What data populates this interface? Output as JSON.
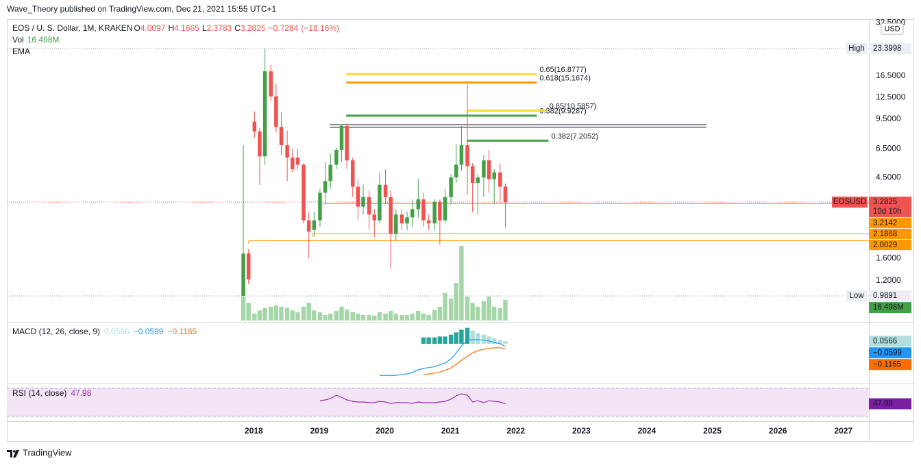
{
  "header": {
    "publisher": "Wave_Theory published on TradingView.com, Dec 21, 2021 15:55 UTC+1"
  },
  "footer": {
    "brand": "TradingView"
  },
  "chart_data": {
    "type": "candlestick",
    "title": "EOS / U. S. Dollar, 1M, KRAKEN",
    "currency": "USD",
    "ohlc_keys": [
      "O",
      "H",
      "L",
      "C"
    ],
    "last": {
      "open": 4.0097,
      "high": 4.1665,
      "low": 2.3783,
      "close": 3.2825,
      "change": {
        "value": -0.7284,
        "label": "−0.7284"
      },
      "change_pct": {
        "value": -18.16,
        "label": "(−18.16%)"
      }
    },
    "log_scale": true,
    "up_color": "#43a047",
    "down_color": "#ef5350",
    "x": [
      2017.84,
      2017.92,
      2018.01,
      2018.09,
      2018.17,
      2018.26,
      2018.34,
      2018.42,
      2018.51,
      2018.59,
      2018.67,
      2018.76,
      2018.84,
      2018.92,
      2019.01,
      2019.09,
      2019.17,
      2019.26,
      2019.34,
      2019.42,
      2019.51,
      2019.59,
      2019.67,
      2019.76,
      2019.84,
      2019.92,
      2020.01,
      2020.09,
      2020.17,
      2020.26,
      2020.34,
      2020.42,
      2020.51,
      2020.59,
      2020.67,
      2020.76,
      2020.84,
      2020.92,
      2021.01,
      2021.09,
      2021.17,
      2021.26,
      2021.34,
      2021.42,
      2021.51,
      2021.59,
      2021.67,
      2021.76,
      2021.84
    ],
    "open": [
      0.99,
      1.7,
      9.2,
      8.1,
      5.9,
      17.5,
      12.7,
      8.6,
      6.8,
      5.8,
      5.8,
      5.3,
      2.6,
      2.3,
      2.6,
      3.7,
      4.3,
      5.3,
      6.4,
      8.7,
      5.6,
      4.0,
      3.1,
      3.5,
      2.8,
      2.6,
      4.1,
      3.5,
      2.2,
      2.8,
      2.5,
      2.7,
      3.0,
      3.4,
      2.6,
      2.5,
      3.3,
      2.6,
      3.5,
      4.5,
      5.3,
      6.8,
      5.2,
      4.2,
      4.5,
      5.6,
      4.4,
      4.8,
      4.0097
    ],
    "high": [
      6.8,
      1.8,
      10.5,
      8.5,
      23.3998,
      19,
      15,
      10.4,
      8.2,
      6.5,
      6.5,
      5.4,
      2.9,
      2.9,
      3.9,
      5.5,
      6.1,
      6.6,
      8.9,
      9.0,
      5.8,
      4.4,
      4.1,
      3.8,
      3.0,
      4.8,
      5.0,
      3.8,
      3.0,
      3.0,
      2.9,
      3.4,
      4.4,
      3.7,
      2.8,
      3.4,
      3.4,
      3.9,
      4.7,
      6.9,
      8.7,
      14.8,
      5.4,
      4.7,
      6.0,
      6.4,
      5.0,
      5.4,
      4.1665
    ],
    "low": [
      0.9891,
      1.15,
      7.5,
      4.1,
      5.3,
      12,
      8.0,
      6.0,
      4.3,
      4.8,
      5.0,
      2.5,
      1.6,
      2.1,
      2.4,
      3.2,
      3.9,
      5.0,
      5.5,
      5.0,
      3.5,
      2.6,
      2.8,
      2.3,
      2.1,
      2.5,
      3.2,
      1.4,
      2.0,
      2.3,
      2.3,
      2.4,
      2.7,
      2.4,
      2.3,
      2.3,
      1.9,
      2.5,
      3.2,
      4.2,
      4.9,
      3.6,
      2.9,
      2.8,
      3.5,
      3.7,
      3.2,
      3.3,
      2.3783
    ],
    "close": [
      1.7,
      1.22,
      8.1,
      5.9,
      17.5,
      12.7,
      8.6,
      6.8,
      5.8,
      5.0,
      5.3,
      2.6,
      2.25,
      2.6,
      3.7,
      4.3,
      5.3,
      6.4,
      8.7,
      5.6,
      4.0,
      3.1,
      3.5,
      2.8,
      2.6,
      4.1,
      3.5,
      2.2,
      2.8,
      2.5,
      2.7,
      3.0,
      3.4,
      2.6,
      2.5,
      3.3,
      2.6,
      3.5,
      4.5,
      5.3,
      6.8,
      5.2,
      4.2,
      4.5,
      5.6,
      4.4,
      4.8,
      4.0,
      3.2825
    ],
    "xlim": [
      2014.23,
      2027.39
    ],
    "xticks": [
      2018,
      2019,
      2020,
      2021,
      2022,
      2023,
      2024,
      2025,
      2026,
      2027
    ],
    "ylim": [
      0.722,
      34.1
    ],
    "yticks": [
      {
        "value": 32.5,
        "label": "32.5000"
      },
      {
        "value": 16.5,
        "label": "16.5000"
      },
      {
        "value": 12.5,
        "label": "12.5000"
      },
      {
        "value": 9.5,
        "label": "9.5000"
      },
      {
        "value": 6.5,
        "label": "6.5000"
      },
      {
        "value": 4.5,
        "label": "4.5000"
      },
      {
        "value": 1.6,
        "label": "1.6000"
      },
      {
        "value": 1.2,
        "label": "1.2000"
      }
    ],
    "high_marker": {
      "label": "High",
      "value": 23.3998
    },
    "low_marker": {
      "label": "Low",
      "value": 0.9891
    },
    "price_tag": {
      "symbol": "EOSUSD",
      "value": 3.2825,
      "countdown": "10d 10h"
    },
    "level_color": "#ff9800",
    "levels": [
      {
        "value": 3.2142,
        "x_start": 2019.06
      },
      {
        "value": 2.1868,
        "x_start": 2018.89
      },
      {
        "value": 2.0029,
        "x_start": 2017.92
      }
    ],
    "trend_lines": [
      {
        "value": 8.85,
        "x_range": [
          2019.16,
          2024.91
        ]
      },
      {
        "value": 8.55,
        "x_range": [
          2019.16,
          2024.91
        ]
      }
    ],
    "fib_levels": [
      {
        "label": "0.65(16.8777)",
        "value": 16.8777,
        "color": "#fdd835",
        "x_range": [
          2019.41,
          2022.32
        ]
      },
      {
        "label": "0.618(15.1674)",
        "value": 15.1674,
        "color": "#ff9800",
        "x_range": [
          2019.41,
          2022.32
        ]
      },
      {
        "label": "0.382(9.9287)",
        "value": 9.9287,
        "color": "#43a047",
        "x_range": [
          2019.41,
          2022.32
        ]
      },
      {
        "label": "0.65(10.5857)",
        "value": 10.5857,
        "color": "#fdd835",
        "x_range": [
          2021.25,
          2022.47
        ]
      },
      {
        "label": "0.382(7.2052)",
        "value": 7.2052,
        "color": "#43a047",
        "x_range": [
          2021.25,
          2022.5
        ]
      }
    ],
    "ema_label": "EMA",
    "volume": {
      "name": "Vol",
      "color": "#a5d6a7",
      "ylim": [
        0,
        60
      ],
      "value_label": "16.498M",
      "values": [
        19,
        14,
        5.5,
        8,
        10,
        11,
        12,
        11,
        10,
        8,
        6.6,
        11,
        14,
        8,
        6.6,
        4.4,
        5.5,
        7.7,
        11,
        8.8,
        6.6,
        5.5,
        4.4,
        4.4,
        3.9,
        6.6,
        5.5,
        7.7,
        5.5,
        4.4,
        4.4,
        5.5,
        7.7,
        5.5,
        4.4,
        8.3,
        11,
        22,
        17.6,
        30,
        59.4,
        19,
        14,
        11,
        15.4,
        19,
        11,
        10,
        16.498
      ]
    },
    "macd": {
      "title": "MACD (12, 26, close, 9)",
      "ylim": [
        -0.84,
        0.39
      ],
      "colors": {
        "histogram_up": "#26a69a",
        "histogram_fading": "#b2dfdb",
        "macd": "#2196f3",
        "signal": "#ff6d00"
      },
      "histogram": [
        null,
        null,
        null,
        null,
        null,
        null,
        null,
        null,
        null,
        null,
        null,
        null,
        null,
        null,
        null,
        null,
        null,
        null,
        null,
        null,
        null,
        null,
        null,
        null,
        null,
        null,
        null,
        null,
        null,
        null,
        null,
        null,
        null,
        0.14,
        0.14,
        0.14,
        0.16,
        0.16,
        0.2,
        0.25,
        0.31,
        0.35,
        0.29,
        0.24,
        0.2,
        0.16,
        0.12,
        0.085,
        0.0566
      ],
      "macd": [
        null,
        null,
        null,
        null,
        null,
        null,
        null,
        null,
        null,
        null,
        null,
        null,
        null,
        null,
        null,
        null,
        null,
        null,
        null,
        null,
        null,
        null,
        null,
        null,
        null,
        -0.7,
        -0.69,
        -0.7,
        -0.69,
        -0.67,
        -0.66,
        -0.63,
        -0.57,
        -0.54,
        -0.52,
        -0.5,
        -0.46,
        -0.42,
        -0.33,
        -0.2,
        -0.05,
        0.08,
        0.09,
        0.09,
        0.08,
        0.06,
        0.03,
        0.0,
        -0.0599
      ],
      "signal": [
        null,
        null,
        null,
        null,
        null,
        null,
        null,
        null,
        null,
        null,
        null,
        null,
        null,
        null,
        null,
        null,
        null,
        null,
        null,
        null,
        null,
        null,
        null,
        null,
        null,
        null,
        null,
        null,
        null,
        null,
        null,
        null,
        null,
        -0.68,
        -0.66,
        -0.64,
        -0.62,
        -0.58,
        -0.53,
        -0.45,
        -0.36,
        -0.27,
        -0.2,
        -0.15,
        -0.12,
        -0.1,
        -0.09,
        -0.085,
        -0.1165
      ],
      "value_labels": {
        "macd": "−0.0599",
        "signal": "−0.1165"
      }
    },
    "rsi": {
      "title": "RSI (14, close)",
      "color": "#9c27b0",
      "ylim": [
        26.1,
        74.9
      ],
      "band": [
        30,
        70
      ],
      "values": [
        null,
        null,
        null,
        null,
        null,
        null,
        null,
        null,
        null,
        null,
        null,
        null,
        null,
        null,
        52.4,
        53.4,
        55.4,
        60.2,
        57.3,
        53.4,
        51.5,
        50.5,
        50.5,
        49.5,
        49.5,
        51.5,
        50.5,
        48.5,
        49.5,
        49.5,
        49.5,
        48.5,
        50.5,
        49.5,
        49.5,
        49.5,
        50.5,
        51.5,
        54.4,
        59.3,
        62.2,
        60.2,
        50.5,
        52.4,
        49.5,
        52.4,
        51.5,
        50.5,
        47.98
      ]
    }
  }
}
